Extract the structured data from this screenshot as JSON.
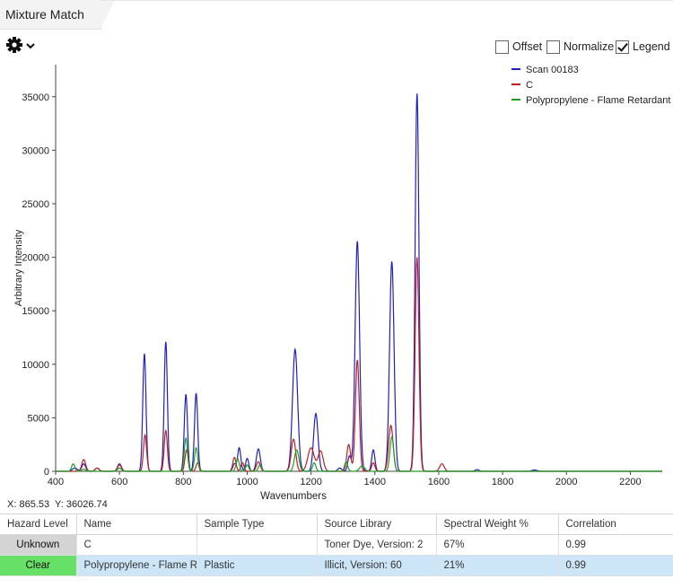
{
  "tab": {
    "title": "Mixture Match"
  },
  "toolbar": {
    "gear_icon": "gear-icon",
    "chevron_icon": "chevron-down-icon",
    "options": [
      {
        "label": "Offset",
        "checked": false
      },
      {
        "label": "Normalize",
        "checked": false
      },
      {
        "label": "Legend",
        "checked": true
      }
    ]
  },
  "cursor": {
    "x_label": "X:",
    "x_value": "865.53",
    "y_label": "Y:",
    "y_value": "36026.74"
  },
  "chart_data": {
    "type": "line",
    "title": "",
    "xlabel": "Wavenumbers",
    "ylabel": "Arbitrary Intensity",
    "xlim": [
      400,
      2300
    ],
    "ylim": [
      0,
      38000
    ],
    "x_ticks": [
      400,
      600,
      800,
      1000,
      1200,
      1400,
      1600,
      1800,
      2000,
      2200
    ],
    "y_ticks": [
      0,
      5000,
      10000,
      15000,
      20000,
      25000,
      30000,
      35000
    ],
    "grid": false,
    "legend_position": "top-right",
    "series": [
      {
        "name": "Scan 00183",
        "color": "#2020c0",
        "peaks": [
          [
            460,
            300,
            8
          ],
          [
            488,
            700,
            6
          ],
          [
            530,
            300,
            6
          ],
          [
            600,
            700,
            6
          ],
          [
            678,
            11000,
            5
          ],
          [
            745,
            12100,
            5
          ],
          [
            808,
            7200,
            5
          ],
          [
            840,
            7300,
            5
          ],
          [
            960,
            700,
            5
          ],
          [
            975,
            2200,
            5
          ],
          [
            1000,
            1200,
            5
          ],
          [
            1035,
            2100,
            6
          ],
          [
            1150,
            11400,
            8
          ],
          [
            1215,
            5400,
            7
          ],
          [
            1290,
            300,
            6
          ],
          [
            1320,
            1400,
            5
          ],
          [
            1345,
            21500,
            7
          ],
          [
            1395,
            2000,
            5
          ],
          [
            1453,
            19600,
            7
          ],
          [
            1532,
            35300,
            6
          ],
          [
            1720,
            150,
            6
          ],
          [
            1900,
            120,
            8
          ]
        ]
      },
      {
        "name": "C",
        "color": "#c02020",
        "peaks": [
          [
            488,
            1100,
            6
          ],
          [
            530,
            300,
            6
          ],
          [
            600,
            600,
            6
          ],
          [
            680,
            3400,
            5
          ],
          [
            745,
            3800,
            5
          ],
          [
            810,
            2000,
            5
          ],
          [
            845,
            800,
            5
          ],
          [
            960,
            1300,
            5
          ],
          [
            985,
            800,
            5
          ],
          [
            1035,
            900,
            6
          ],
          [
            1145,
            3000,
            7
          ],
          [
            1200,
            2200,
            10
          ],
          [
            1230,
            1900,
            8
          ],
          [
            1318,
            2500,
            6
          ],
          [
            1345,
            10400,
            6
          ],
          [
            1395,
            800,
            5
          ],
          [
            1450,
            4300,
            7
          ],
          [
            1532,
            20000,
            6
          ],
          [
            1610,
            700,
            7
          ]
        ]
      },
      {
        "name": "Polypropylene - Flame Retardant",
        "color": "#20a020",
        "peaks": [
          [
            455,
            700,
            5
          ],
          [
            488,
            200,
            6
          ],
          [
            600,
            300,
            6
          ],
          [
            808,
            3100,
            5
          ],
          [
            840,
            2200,
            5
          ],
          [
            970,
            1200,
            5
          ],
          [
            1000,
            600,
            5
          ],
          [
            1040,
            600,
            5
          ],
          [
            1155,
            2000,
            7
          ],
          [
            1210,
            800,
            5
          ],
          [
            1310,
            900,
            5
          ],
          [
            1360,
            500,
            8
          ],
          [
            1453,
            3200,
            6
          ]
        ]
      }
    ]
  },
  "table": {
    "columns": [
      "Hazard Level",
      "Name",
      "Sample Type",
      "Source Library",
      "Spectral Weight %",
      "Correlation"
    ],
    "rows": [
      {
        "hazard": "Unknown",
        "hazard_color": "#d4d4d4",
        "name": "C",
        "sample_type": "",
        "source": "Toner Dye, Version: 2",
        "weight": "67%",
        "correlation": "0.99",
        "selected": false
      },
      {
        "hazard": "Clear",
        "hazard_color": "#66e066",
        "name": "Polypropylene - Flame R",
        "sample_type": "Plastic",
        "source": "Illicit, Version: 60",
        "weight": "21%",
        "correlation": "0.99",
        "selected": true
      }
    ]
  }
}
